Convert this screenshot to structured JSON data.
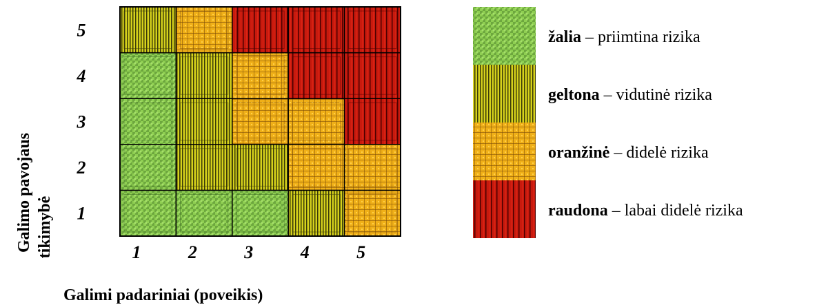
{
  "chart_data": {
    "type": "heatmap",
    "title": "",
    "xlabel": "Galimi padariniai (poveikis)",
    "ylabel_lines": [
      "Galimo pavojaus",
      "tikimybė"
    ],
    "x_categories": [
      "1",
      "2",
      "3",
      "4",
      "5"
    ],
    "y_categories": [
      "1",
      "2",
      "3",
      "4",
      "5"
    ],
    "cells": [
      [
        "green",
        "green",
        "green",
        "yellow",
        "orange"
      ],
      [
        "green",
        "yellow",
        "yellow",
        "orange",
        "orange"
      ],
      [
        "green",
        "yellow",
        "orange",
        "orange",
        "red"
      ],
      [
        "green",
        "yellow",
        "orange",
        "red",
        "red"
      ],
      [
        "yellow",
        "orange",
        "red",
        "red",
        "red"
      ]
    ],
    "legend": {
      "placement": "right",
      "items": [
        {
          "level": "green",
          "name": "žalia",
          "desc": " – priimtina rizika"
        },
        {
          "level": "yellow",
          "name": "geltona",
          "desc": " – vidutinė rizika"
        },
        {
          "level": "orange",
          "name": "oranžinė",
          "desc": " – didelė rizika"
        },
        {
          "level": "red",
          "name": "raudona",
          "desc": " – labai didelė rizika"
        }
      ]
    },
    "colors": {
      "green": {
        "base": "#8fcf52",
        "dark": "#2e5a1a",
        "light": "#a6e06a"
      },
      "yellow": {
        "base": "#d6d21c",
        "dark": "#3a3a08",
        "light": "#eeea40"
      },
      "orange": {
        "base": "#f0b018",
        "dark": "#7a4a08",
        "light": "#ffd04a"
      },
      "red": {
        "base": "#c81a0e",
        "dark": "#4a0000",
        "light": "#e82a18"
      }
    }
  }
}
